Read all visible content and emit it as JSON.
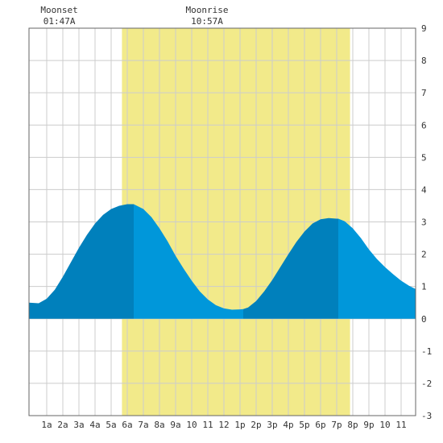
{
  "events": [
    {
      "label": "Moonset",
      "time": "01:47A",
      "hour": 1.78
    },
    {
      "label": "Moonrise",
      "time": "10:57A",
      "hour": 10.95
    }
  ],
  "chart_data": {
    "type": "area",
    "title": "",
    "xlabel": "",
    "ylabel": "",
    "xlim": [
      -0.1,
      23.9
    ],
    "ylim": [
      -3,
      9
    ],
    "x_tick_labels": [
      "1a",
      "2a",
      "3a",
      "4a",
      "5a",
      "6a",
      "7a",
      "8a",
      "9a",
      "10",
      "11",
      "12",
      "1p",
      "2p",
      "3p",
      "4p",
      "5p",
      "6p",
      "7p",
      "8p",
      "9p",
      "10",
      "11"
    ],
    "y_ticks": [
      -3,
      -2,
      -1,
      0,
      1,
      2,
      3,
      4,
      5,
      6,
      7,
      8,
      9
    ],
    "grid": true,
    "daylight": {
      "start_hour": 5.67,
      "end_hour": 19.83
    },
    "extrema": [
      {
        "hour": 6.4,
        "height": 3.55
      },
      {
        "hour": 13.2,
        "height": 0.3
      },
      {
        "hour": 19.1,
        "height": 3.1
      }
    ],
    "series": [
      {
        "x": [
          -0.1,
          0.5,
          1,
          1.5,
          2,
          2.5,
          3,
          3.5,
          4,
          4.5,
          5,
          5.5,
          6,
          6.4,
          7,
          7.5,
          8,
          8.5,
          9,
          9.5,
          10,
          10.5,
          11,
          11.5,
          12,
          12.5,
          13,
          13.2,
          13.5,
          14,
          14.5,
          15,
          15.5,
          16,
          16.5,
          17,
          17.5,
          18,
          18.5,
          19,
          19.1,
          19.5,
          20,
          20.5,
          21,
          21.5,
          22,
          22.5,
          23,
          23.5,
          23.9
        ],
        "y": [
          0.5,
          0.48,
          0.62,
          0.9,
          1.3,
          1.75,
          2.2,
          2.6,
          2.95,
          3.22,
          3.4,
          3.5,
          3.55,
          3.55,
          3.4,
          3.15,
          2.8,
          2.4,
          1.95,
          1.55,
          1.18,
          0.85,
          0.6,
          0.42,
          0.32,
          0.28,
          0.29,
          0.3,
          0.35,
          0.55,
          0.85,
          1.2,
          1.6,
          2.0,
          2.38,
          2.7,
          2.95,
          3.08,
          3.12,
          3.1,
          3.1,
          3.02,
          2.8,
          2.5,
          2.15,
          1.85,
          1.6,
          1.38,
          1.18,
          1.02,
          0.92
        ]
      }
    ],
    "colors": {
      "daylight": "#f2ea8a",
      "water_light": "#0097da",
      "water_dark": "#0080bc",
      "grid": "#cccccc",
      "frame": "#666666"
    }
  }
}
